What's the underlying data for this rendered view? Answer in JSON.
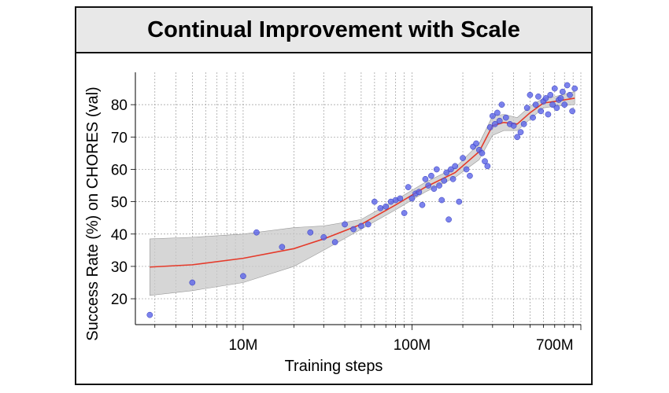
{
  "chart_data": {
    "type": "scatter",
    "title": "Continual Improvement with Scale",
    "xlabel": "Training steps",
    "ylabel": "Success Rate (%) on CHORES (val)",
    "x_scale": "log",
    "xlim": [
      2300000,
      1000000000
    ],
    "ylim": [
      12,
      90
    ],
    "x_ticks": [
      {
        "value": 10000000,
        "label": "10M"
      },
      {
        "value": 100000000,
        "label": "100M"
      },
      {
        "value": 700000000,
        "label": "700M"
      }
    ],
    "y_ticks": [
      20,
      30,
      40,
      50,
      60,
      70,
      80
    ],
    "grid": true,
    "colors": {
      "points": "#5b64e8",
      "trend": "#e53a2a",
      "band": "#c8c8c8"
    },
    "points": [
      [
        2800000,
        15
      ],
      [
        5000000,
        25
      ],
      [
        10000000,
        27
      ],
      [
        12000000,
        40.5
      ],
      [
        17000000,
        36
      ],
      [
        25000000,
        40.5
      ],
      [
        30000000,
        39
      ],
      [
        35000000,
        37.5
      ],
      [
        40000000,
        43
      ],
      [
        45000000,
        41.5
      ],
      [
        50000000,
        42.5
      ],
      [
        55000000,
        43
      ],
      [
        60000000,
        50
      ],
      [
        65000000,
        48
      ],
      [
        70000000,
        48.5
      ],
      [
        75000000,
        50
      ],
      [
        80000000,
        50.5
      ],
      [
        85000000,
        51
      ],
      [
        90000000,
        46.5
      ],
      [
        95000000,
        54.5
      ],
      [
        100000000,
        51
      ],
      [
        105000000,
        52.5
      ],
      [
        110000000,
        53
      ],
      [
        115000000,
        49
      ],
      [
        120000000,
        57
      ],
      [
        125000000,
        55
      ],
      [
        130000000,
        58
      ],
      [
        135000000,
        54
      ],
      [
        140000000,
        60
      ],
      [
        145000000,
        55
      ],
      [
        150000000,
        50.5
      ],
      [
        155000000,
        56.5
      ],
      [
        160000000,
        59
      ],
      [
        165000000,
        44.5
      ],
      [
        170000000,
        60
      ],
      [
        175000000,
        57
      ],
      [
        180000000,
        61
      ],
      [
        190000000,
        50
      ],
      [
        200000000,
        63.5
      ],
      [
        210000000,
        60
      ],
      [
        220000000,
        58
      ],
      [
        230000000,
        67
      ],
      [
        240000000,
        68
      ],
      [
        250000000,
        66
      ],
      [
        260000000,
        65
      ],
      [
        270000000,
        62.5
      ],
      [
        280000000,
        61
      ],
      [
        290000000,
        73
      ],
      [
        300000000,
        76.5
      ],
      [
        310000000,
        74
      ],
      [
        320000000,
        77.5
      ],
      [
        330000000,
        75
      ],
      [
        340000000,
        80
      ],
      [
        360000000,
        76
      ],
      [
        380000000,
        74
      ],
      [
        400000000,
        73.5
      ],
      [
        420000000,
        70
      ],
      [
        440000000,
        71.5
      ],
      [
        460000000,
        74
      ],
      [
        480000000,
        79
      ],
      [
        500000000,
        83
      ],
      [
        520000000,
        76
      ],
      [
        540000000,
        80
      ],
      [
        560000000,
        82.5
      ],
      [
        580000000,
        78
      ],
      [
        600000000,
        81
      ],
      [
        620000000,
        82
      ],
      [
        640000000,
        77
      ],
      [
        660000000,
        83
      ],
      [
        680000000,
        80
      ],
      [
        700000000,
        85
      ],
      [
        720000000,
        79
      ],
      [
        740000000,
        81.5
      ],
      [
        760000000,
        82
      ],
      [
        780000000,
        84
      ],
      [
        800000000,
        80
      ],
      [
        830000000,
        86
      ],
      [
        860000000,
        83
      ],
      [
        890000000,
        78
      ],
      [
        920000000,
        85
      ]
    ],
    "trend": [
      [
        2800000,
        29.8
      ],
      [
        5000000,
        30.5
      ],
      [
        10000000,
        32.5
      ],
      [
        20000000,
        35.5
      ],
      [
        30000000,
        38.5
      ],
      [
        50000000,
        43
      ],
      [
        80000000,
        49
      ],
      [
        120000000,
        54.5
      ],
      [
        180000000,
        59
      ],
      [
        250000000,
        65.5
      ],
      [
        300000000,
        73.5
      ],
      [
        350000000,
        74.5
      ],
      [
        420000000,
        74
      ],
      [
        500000000,
        77.5
      ],
      [
        600000000,
        80.5
      ],
      [
        700000000,
        81
      ],
      [
        920000000,
        82
      ]
    ],
    "band_upper": [
      [
        2800000,
        38.5
      ],
      [
        5000000,
        39
      ],
      [
        10000000,
        40
      ],
      [
        20000000,
        42
      ],
      [
        30000000,
        42.5
      ],
      [
        50000000,
        44.5
      ],
      [
        80000000,
        50.5
      ],
      [
        120000000,
        56
      ],
      [
        180000000,
        60.5
      ],
      [
        250000000,
        68
      ],
      [
        300000000,
        76.5
      ],
      [
        350000000,
        77
      ],
      [
        420000000,
        76
      ],
      [
        500000000,
        79.5
      ],
      [
        600000000,
        82
      ],
      [
        700000000,
        82.5
      ],
      [
        920000000,
        84
      ]
    ],
    "band_lower": [
      [
        2800000,
        21
      ],
      [
        5000000,
        22.5
      ],
      [
        10000000,
        25
      ],
      [
        20000000,
        30
      ],
      [
        30000000,
        35
      ],
      [
        50000000,
        41.5
      ],
      [
        80000000,
        47.5
      ],
      [
        120000000,
        53
      ],
      [
        180000000,
        57.5
      ],
      [
        250000000,
        63
      ],
      [
        300000000,
        70.5
      ],
      [
        350000000,
        72
      ],
      [
        420000000,
        72
      ],
      [
        500000000,
        75.5
      ],
      [
        600000000,
        79
      ],
      [
        700000000,
        79.5
      ],
      [
        920000000,
        80
      ]
    ]
  }
}
